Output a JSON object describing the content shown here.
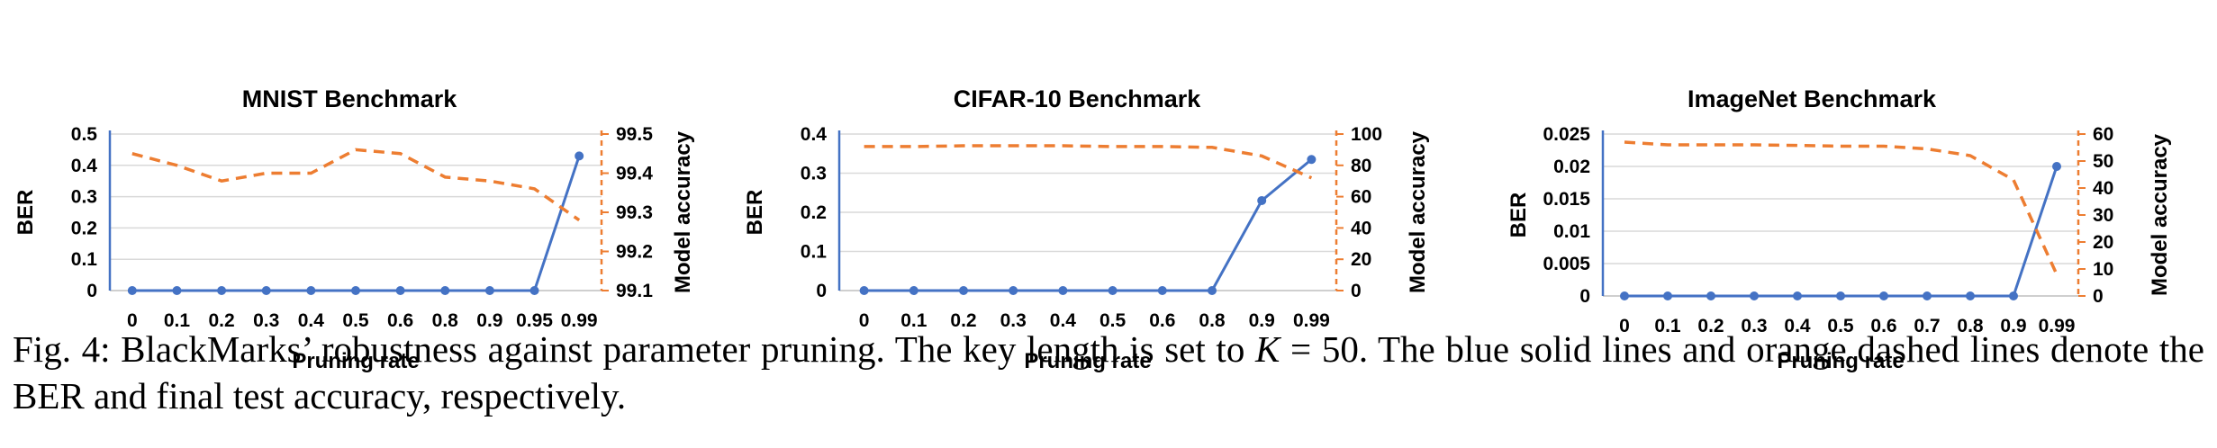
{
  "colors": {
    "ber": "#4472C4",
    "accuracy": "#ED7D31",
    "grid": "#D9D9D9"
  },
  "chart_data": [
    {
      "type": "line",
      "title": "MNIST Benchmark",
      "xlabel": "Pruning rate",
      "ylabel": "BER",
      "y2label": "Model accuracy",
      "categories": [
        "0",
        "0.1",
        "0.2",
        "0.3",
        "0.4",
        "0.5",
        "0.6",
        "0.8",
        "0.9",
        "0.95",
        "0.99"
      ],
      "ylim": [
        0,
        0.5
      ],
      "yticks": [
        "0",
        "0.1",
        "0.2",
        "0.3",
        "0.4",
        "0.5"
      ],
      "y2lim": [
        99.1,
        99.5
      ],
      "y2ticks": [
        "99.1",
        "99.2",
        "99.3",
        "99.4",
        "99.5"
      ],
      "grid": true,
      "series": [
        {
          "axis": "left",
          "style": "solid-markers",
          "values": [
            0,
            0,
            0,
            0,
            0,
            0,
            0,
            0,
            0,
            0,
            0.43
          ]
        },
        {
          "axis": "right",
          "style": "dashed",
          "values": [
            99.45,
            99.42,
            99.38,
            99.4,
            99.4,
            99.46,
            99.45,
            99.39,
            99.38,
            99.36,
            99.28
          ]
        }
      ]
    },
    {
      "type": "line",
      "title": "CIFAR-10 Benchmark",
      "xlabel": "Pruning rate",
      "ylabel": "BER",
      "y2label": "Model accuracy",
      "categories": [
        "0",
        "0.1",
        "0.2",
        "0.3",
        "0.4",
        "0.5",
        "0.6",
        "0.8",
        "0.9",
        "0.99"
      ],
      "ylim": [
        0,
        0.4
      ],
      "yticks": [
        "0",
        "0.1",
        "0.2",
        "0.3",
        "0.4"
      ],
      "y2lim": [
        0,
        100
      ],
      "y2ticks": [
        "0",
        "20",
        "40",
        "60",
        "80",
        "100"
      ],
      "grid": true,
      "series": [
        {
          "axis": "left",
          "style": "solid-markers",
          "values": [
            0,
            0,
            0,
            0,
            0,
            0,
            0,
            0,
            0.23,
            0.335
          ]
        },
        {
          "axis": "right",
          "style": "dashed",
          "values": [
            92,
            92,
            92.5,
            92.5,
            92.5,
            92,
            92,
            91.5,
            86,
            72
          ]
        }
      ]
    },
    {
      "type": "line",
      "title": "ImageNet Benchmark",
      "xlabel": "Pruning rate",
      "ylabel": "BER",
      "y2label": "Model accuracy",
      "categories": [
        "0",
        "0.1",
        "0.2",
        "0.3",
        "0.4",
        "0.5",
        "0.6",
        "0.7",
        "0.8",
        "0.9",
        "0.99"
      ],
      "ylim": [
        0,
        0.025
      ],
      "yticks": [
        "0",
        "0.005",
        "0.01",
        "0.015",
        "0.02",
        "0.025"
      ],
      "y2lim": [
        0,
        60
      ],
      "y2ticks": [
        "0",
        "10",
        "20",
        "30",
        "40",
        "50",
        "60"
      ],
      "grid": true,
      "series": [
        {
          "axis": "left",
          "style": "solid-markers",
          "values": [
            0,
            0,
            0,
            0,
            0,
            0,
            0,
            0,
            0,
            0,
            0.02
          ]
        },
        {
          "axis": "right",
          "style": "dashed",
          "values": [
            57,
            56,
            56,
            56,
            55.8,
            55.5,
            55.5,
            54.5,
            52,
            43,
            8
          ]
        }
      ]
    }
  ],
  "caption": {
    "prefix": "Fig. 4: BlackMarks’ robustness against parameter pruning. The key length is set to ",
    "math_var": "K",
    "math_rest": " = 50. The blue solid lines and orange dashed lines denote the BER and final test accuracy, respectively."
  }
}
